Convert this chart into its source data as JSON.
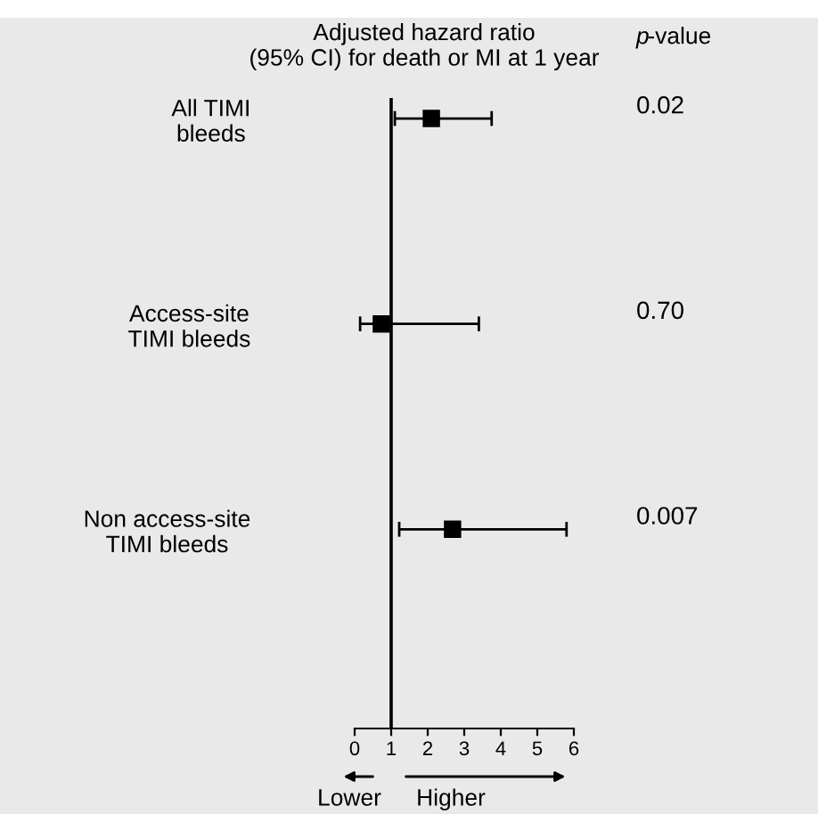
{
  "chart_data": {
    "type": "scatter",
    "orientation": "horizontal",
    "title": "Adjusted hazard ratio\n(95% CI) for death or MI at 1 year",
    "categories": [
      "All TIMI\nbleeds",
      "Access-site\nTIMI bleeds",
      "Non access-site\nTIMI bleeds"
    ],
    "values": [
      2.1,
      0.73,
      2.68
    ],
    "errors": [
      [
        1.1,
        3.75
      ],
      [
        0.15,
        3.4
      ],
      [
        1.22,
        5.8
      ]
    ],
    "color": "#000000",
    "marker": "square",
    "xlim": [
      0,
      6
    ],
    "xticks": [
      0,
      1,
      2,
      3,
      4,
      5,
      6
    ],
    "ref_lines": [
      {
        "axis": "x",
        "value": 1
      }
    ],
    "annotations": [
      "p-value",
      "0.02",
      "0.70",
      "0.007",
      "Lower",
      "Higher"
    ]
  }
}
